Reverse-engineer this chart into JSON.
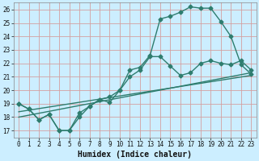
{
  "xlabel": "Humidex (Indice chaleur)",
  "bg_color": "#cceeff",
  "grid_color": "#d4a0a0",
  "line_color": "#2e7d6e",
  "xlim": [
    -0.5,
    23.5
  ],
  "ylim": [
    16.5,
    26.5
  ],
  "xticks": [
    0,
    1,
    2,
    3,
    4,
    5,
    6,
    7,
    8,
    9,
    10,
    11,
    12,
    13,
    14,
    15,
    16,
    17,
    18,
    19,
    20,
    21,
    22,
    23
  ],
  "yticks": [
    17,
    18,
    19,
    20,
    21,
    22,
    23,
    24,
    25,
    26
  ],
  "line1_x": [
    0,
    1,
    2,
    3,
    4,
    5,
    6,
    7,
    8,
    9,
    10,
    11,
    12,
    13,
    14,
    15,
    16,
    17,
    18,
    19,
    20,
    21,
    22,
    23
  ],
  "line1_y": [
    19.0,
    18.6,
    17.8,
    18.2,
    17.0,
    17.0,
    18.3,
    18.8,
    19.3,
    19.1,
    20.0,
    21.5,
    21.7,
    22.6,
    25.3,
    25.5,
    25.8,
    26.2,
    26.1,
    26.1,
    25.1,
    24.0,
    21.9,
    21.2
  ],
  "line2_x": [
    0,
    1,
    2,
    3,
    4,
    5,
    6,
    7,
    8,
    9,
    10,
    11,
    12,
    13,
    14,
    15,
    16,
    17,
    18,
    19,
    20,
    21,
    22,
    23
  ],
  "line2_y": [
    19.0,
    18.6,
    17.8,
    18.2,
    17.0,
    17.0,
    18.0,
    18.8,
    19.3,
    19.5,
    20.0,
    21.0,
    21.5,
    22.5,
    22.5,
    21.8,
    21.1,
    21.3,
    22.0,
    22.2,
    22.0,
    21.9,
    22.2,
    21.5
  ],
  "line3_x": [
    0,
    23
  ],
  "line3_y": [
    18.0,
    21.3
  ],
  "line4_x": [
    0,
    23
  ],
  "line4_y": [
    18.4,
    21.1
  ],
  "marker_size": 2.5,
  "line_width": 1.0
}
